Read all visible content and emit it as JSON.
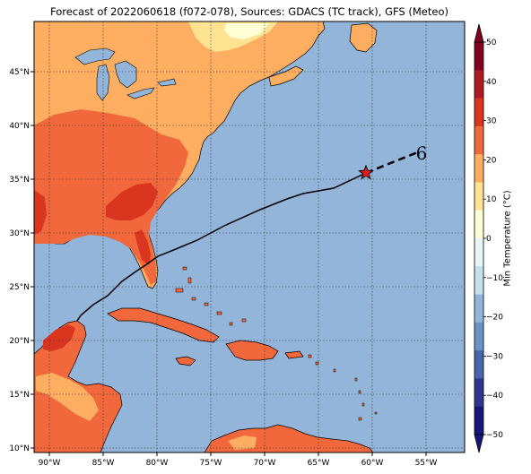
{
  "title": "Forecast of 2022060618 (f072-078), Sources: GDACS (TC track), GFS (Meteo)",
  "map": {
    "lon_range": [
      -92,
      -51
    ],
    "lat_range": [
      9.5,
      49.5
    ],
    "lon_ticks": [
      "90°W",
      "85°W",
      "80°W",
      "75°W",
      "70°W",
      "65°W",
      "60°W",
      "55°W"
    ],
    "lat_ticks": [
      "45°N",
      "40°N",
      "35°N",
      "30°N",
      "25°N",
      "20°N",
      "15°N",
      "10°N"
    ],
    "ocean_color": "#92b5d9",
    "grid": true,
    "storm_marker": {
      "lon": -60.5,
      "lat": 35.5,
      "symbol": "red-star"
    },
    "forecast_symbol": "6"
  },
  "colorbar": {
    "label": "Min Temperature (°C)",
    "ticks": [
      "50",
      "40",
      "30",
      "20",
      "10",
      "0",
      "−10",
      "−20",
      "−30",
      "−40",
      "−50"
    ],
    "bands": [
      "#7f0023",
      "#b01826",
      "#d9351f",
      "#f0683c",
      "#fdae61",
      "#fee393",
      "#fefed5",
      "#e8f5f7",
      "#c4e1ec",
      "#92b5d9",
      "#6a93c7",
      "#4865a9",
      "#2f3591",
      "#17157a"
    ]
  },
  "legend_colors": {
    "land_warm": "#f0683c",
    "land_hot": "#d9351f",
    "land_mild": "#fdae61",
    "land_cool": "#fee393",
    "land_cold": "#fefed5"
  }
}
